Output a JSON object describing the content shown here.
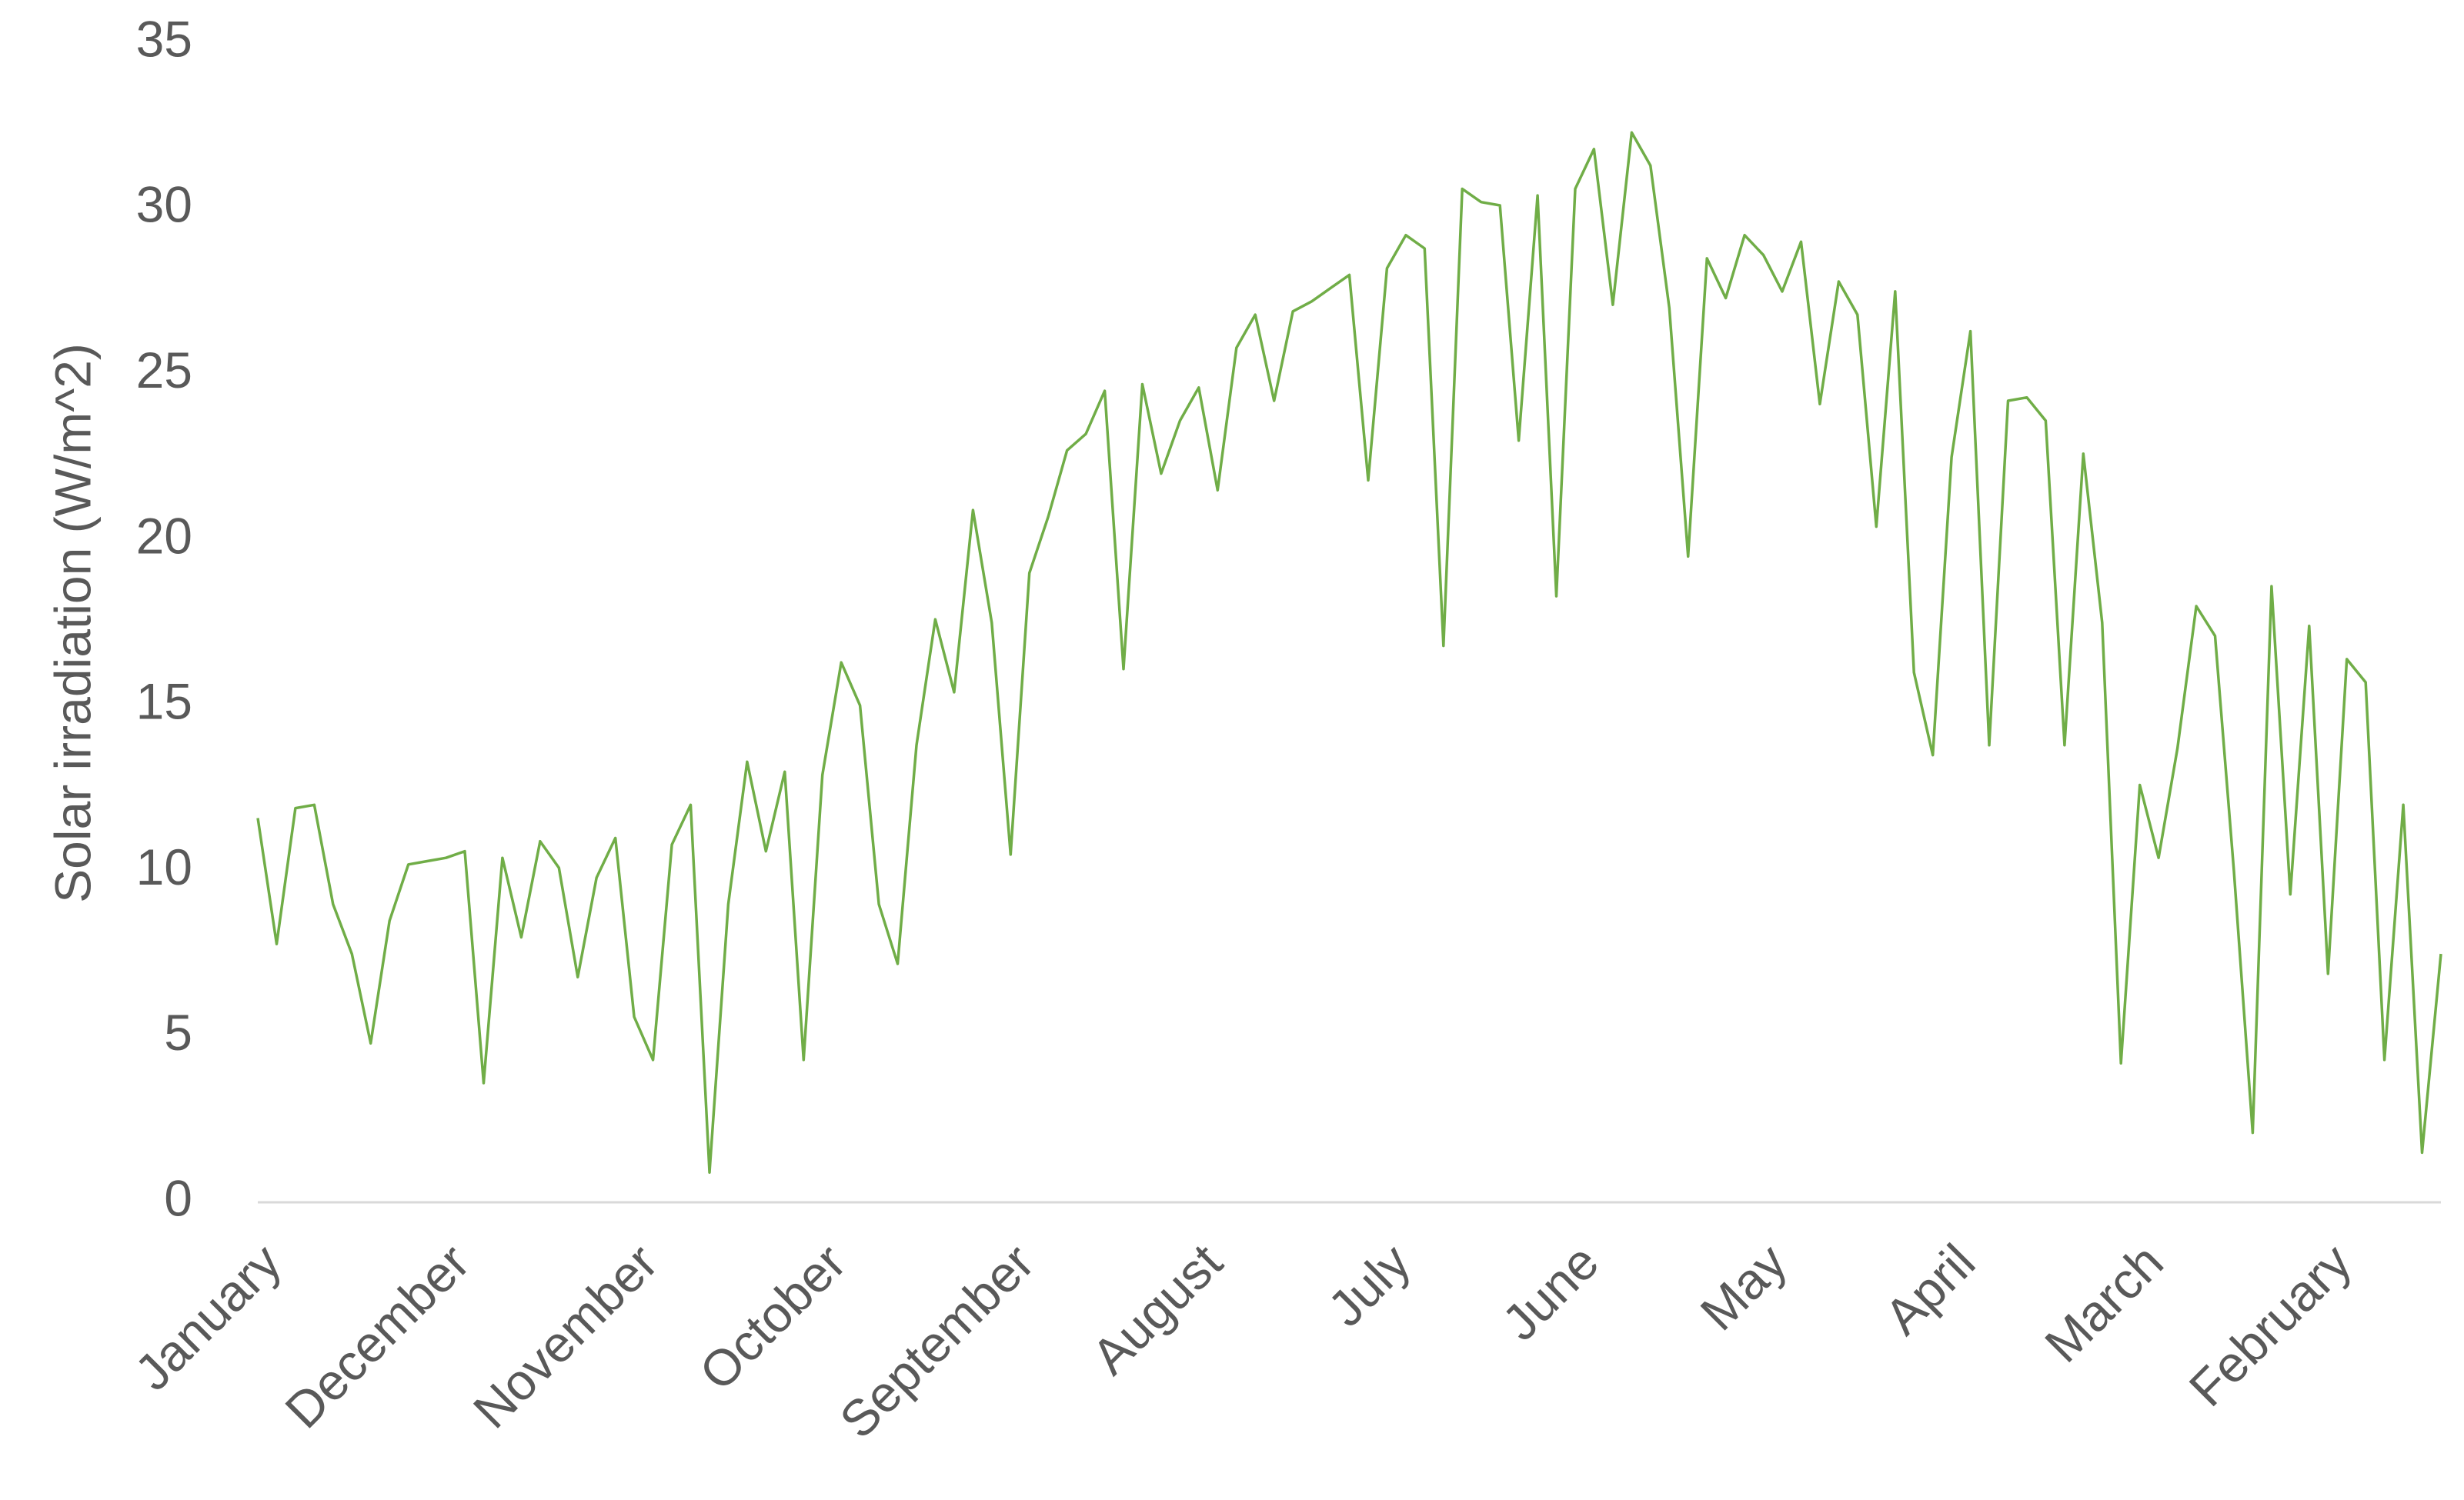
{
  "chart_data": {
    "type": "line",
    "y_label": "Solar irradiation (W/m^2)",
    "categories": [
      "January",
      null,
      null,
      null,
      null,
      null,
      null,
      null,
      null,
      null,
      "December",
      null,
      null,
      null,
      null,
      null,
      null,
      null,
      null,
      null,
      "November",
      null,
      null,
      null,
      null,
      null,
      null,
      null,
      null,
      null,
      "October",
      null,
      null,
      null,
      null,
      null,
      null,
      null,
      null,
      null,
      "September",
      null,
      null,
      null,
      null,
      null,
      null,
      null,
      null,
      null,
      "August",
      null,
      null,
      null,
      null,
      null,
      null,
      null,
      null,
      null,
      "July",
      null,
      null,
      null,
      null,
      null,
      null,
      null,
      null,
      null,
      "June",
      null,
      null,
      null,
      null,
      null,
      null,
      null,
      null,
      null,
      "May",
      null,
      null,
      null,
      null,
      null,
      null,
      null,
      null,
      null,
      "April",
      null,
      null,
      null,
      null,
      null,
      null,
      null,
      null,
      null,
      "March",
      null,
      null,
      null,
      null,
      null,
      null,
      null,
      null,
      null,
      "February",
      null,
      null,
      null,
      null,
      null,
      null
    ],
    "values": [
      11.6,
      7.8,
      11.9,
      12.0,
      9.0,
      7.5,
      4.8,
      8.5,
      10.2,
      10.3,
      10.4,
      10.6,
      3.6,
      10.4,
      8.0,
      10.9,
      10.1,
      6.8,
      9.8,
      11.0,
      5.6,
      4.3,
      10.8,
      12.0,
      0.9,
      9.0,
      13.3,
      10.6,
      13.0,
      4.3,
      12.9,
      16.3,
      15.0,
      9.0,
      7.2,
      13.8,
      17.6,
      15.4,
      20.9,
      17.5,
      10.5,
      19.0,
      20.7,
      22.7,
      23.2,
      24.5,
      16.1,
      24.7,
      22.0,
      23.6,
      24.6,
      21.5,
      25.8,
      26.8,
      24.2,
      26.9,
      27.2,
      27.6,
      28.0,
      21.8,
      28.2,
      29.2,
      28.8,
      16.8,
      30.6,
      30.2,
      30.1,
      23.0,
      30.4,
      18.3,
      30.6,
      31.8,
      27.1,
      32.3,
      31.3,
      27.0,
      19.5,
      28.5,
      27.3,
      29.2,
      28.6,
      27.5,
      29.0,
      24.1,
      27.8,
      26.8,
      20.4,
      27.5,
      16.0,
      13.5,
      22.5,
      26.3,
      13.8,
      24.2,
      24.3,
      23.6,
      13.8,
      22.6,
      17.5,
      4.2,
      12.6,
      10.4,
      13.7,
      18.0,
      17.1,
      10.0,
      2.1,
      18.6,
      9.3,
      17.4,
      6.9,
      16.4,
      15.7,
      4.3,
      12.0,
      1.5,
      7.5
    ],
    "color": "#70ad47",
    "ylim": [
      0,
      35
    ],
    "yticks": [
      0,
      5,
      10,
      15,
      20,
      25,
      30,
      35
    ]
  }
}
